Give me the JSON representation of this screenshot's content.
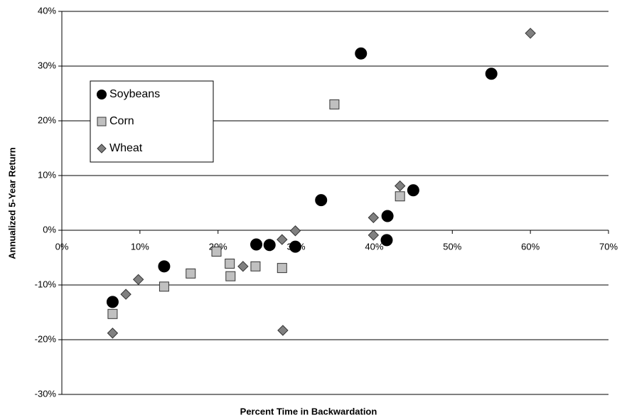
{
  "chart_data": {
    "type": "scatter",
    "x_label": "Percent Time in Backwardation",
    "y_label": "Annualized 5-Year Return",
    "xlim": [
      0,
      70
    ],
    "ylim": [
      -30,
      40
    ],
    "xticks": [
      {
        "value": 0,
        "label": "0%"
      },
      {
        "value": 10,
        "label": "10%"
      },
      {
        "value": 20,
        "label": "20%"
      },
      {
        "value": 30,
        "label": "30%"
      },
      {
        "value": 40,
        "label": "40%"
      },
      {
        "value": 50,
        "label": "50%"
      },
      {
        "value": 60,
        "label": "60%"
      },
      {
        "value": 70,
        "label": "70%"
      }
    ],
    "yticks": [
      {
        "value": -30,
        "label": "-30%"
      },
      {
        "value": -20,
        "label": "-20%"
      },
      {
        "value": -10,
        "label": "-10%"
      },
      {
        "value": 0,
        "label": "0%"
      },
      {
        "value": 10,
        "label": "10%"
      },
      {
        "value": 20,
        "label": "20%"
      },
      {
        "value": 30,
        "label": "30%"
      },
      {
        "value": 40,
        "label": "40%"
      }
    ],
    "grid": true,
    "legend": "upper left",
    "series": [
      {
        "name": "Soybeans",
        "color": "#000000",
        "marker": "circle",
        "x": [
          6.5,
          13.1,
          24.9,
          26.6,
          29.9,
          33.2,
          38.3,
          41.6,
          41.7,
          45.0,
          55.0
        ],
        "values": [
          -13.1,
          -6.6,
          -2.6,
          -2.7,
          -3.0,
          5.5,
          32.3,
          -1.8,
          2.6,
          7.3,
          28.6
        ]
      },
      {
        "name": "Corn",
        "color": "#c0c0c0",
        "marker": "square",
        "x": [
          6.5,
          13.1,
          16.5,
          19.8,
          21.5,
          21.6,
          24.8,
          28.2,
          34.9,
          43.3
        ],
        "values": [
          -15.3,
          -10.3,
          -7.9,
          -3.9,
          -6.1,
          -8.4,
          -6.6,
          -6.9,
          23.0,
          6.2
        ]
      },
      {
        "name": "Wheat",
        "color": "#808080",
        "marker": "diamond",
        "x": [
          6.5,
          8.2,
          9.8,
          23.2,
          28.2,
          28.3,
          29.9,
          39.9,
          39.9,
          43.3,
          60.0
        ],
        "values": [
          -18.8,
          -11.7,
          -9.0,
          -6.6,
          -1.7,
          -18.3,
          -0.1,
          2.3,
          -0.9,
          8.1,
          36.0
        ]
      }
    ]
  }
}
